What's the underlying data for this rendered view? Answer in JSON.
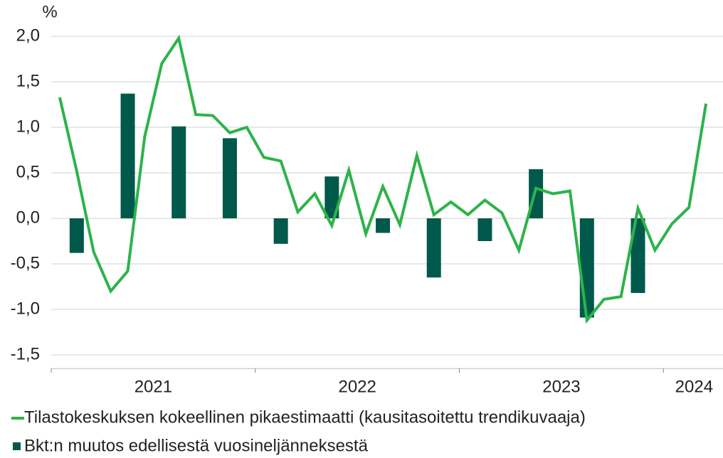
{
  "chart_data": {
    "type": "bar-line",
    "y_axis_label": "%",
    "categories": [
      null,
      null,
      null,
      null,
      null,
      null,
      null,
      null,
      null,
      null,
      null,
      null,
      null,
      null,
      null,
      null,
      null,
      null,
      null,
      null,
      null,
      null,
      null,
      null,
      null,
      null,
      null,
      null,
      null,
      null,
      null,
      null,
      null,
      null,
      null,
      null,
      null,
      null,
      null
    ],
    "series": [
      {
        "name": "Tilastokeskuksen kokeellinen pikaestimaatti (kausitasoitettu trendikuvaaja)",
        "type": "line",
        "color": "#2db34a",
        "values": [
          1.33,
          0.52,
          -0.37,
          -0.8,
          -0.58,
          0.9,
          1.7,
          1.98,
          1.14,
          1.13,
          0.94,
          1.0,
          0.67,
          0.63,
          0.07,
          0.27,
          -0.08,
          0.53,
          -0.17,
          0.35,
          -0.07,
          0.69,
          0.04,
          0.18,
          0.04,
          0.2,
          0.06,
          -0.35,
          0.33,
          0.27,
          0.3,
          -1.12,
          -0.89,
          -0.86,
          0.11,
          -0.35,
          -0.06,
          0.12,
          1.26
        ]
      },
      {
        "name": "Bkt:n muutos edellisestä vuosineljänneksestä",
        "type": "bar",
        "color": "#00594a",
        "values": [
          null,
          -0.38,
          null,
          null,
          1.37,
          null,
          null,
          1.01,
          null,
          null,
          0.88,
          null,
          null,
          -0.28,
          null,
          null,
          0.46,
          null,
          null,
          -0.16,
          null,
          null,
          -0.65,
          null,
          null,
          -0.25,
          null,
          null,
          0.54,
          null,
          null,
          -1.09,
          null,
          null,
          -0.82,
          null,
          null,
          null,
          null
        ]
      }
    ],
    "xlim": [
      -0.5,
      39
    ],
    "xticks": [
      -0.5,
      11.5,
      23.5,
      35.5
    ],
    "xlabels": [
      {
        "value": 5.5,
        "label": "2021"
      },
      {
        "value": 17.5,
        "label": "2022"
      },
      {
        "value": 29.5,
        "label": "2023"
      },
      {
        "value": 37.3,
        "label": "2024"
      }
    ],
    "ylim": [
      -1.65,
      2.15
    ],
    "yticks": [
      {
        "value": 2.0,
        "label": "2,0"
      },
      {
        "value": 1.5,
        "label": "1,5"
      },
      {
        "value": 1.0,
        "label": "1,0"
      },
      {
        "value": 0.5,
        "label": "0,5"
      },
      {
        "value": 0.0,
        "label": "0,0"
      },
      {
        "value": -0.5,
        "label": "-0,5"
      },
      {
        "value": -1.0,
        "label": "-1,0"
      },
      {
        "value": -1.5,
        "label": "-1,5"
      }
    ],
    "grid": true
  }
}
